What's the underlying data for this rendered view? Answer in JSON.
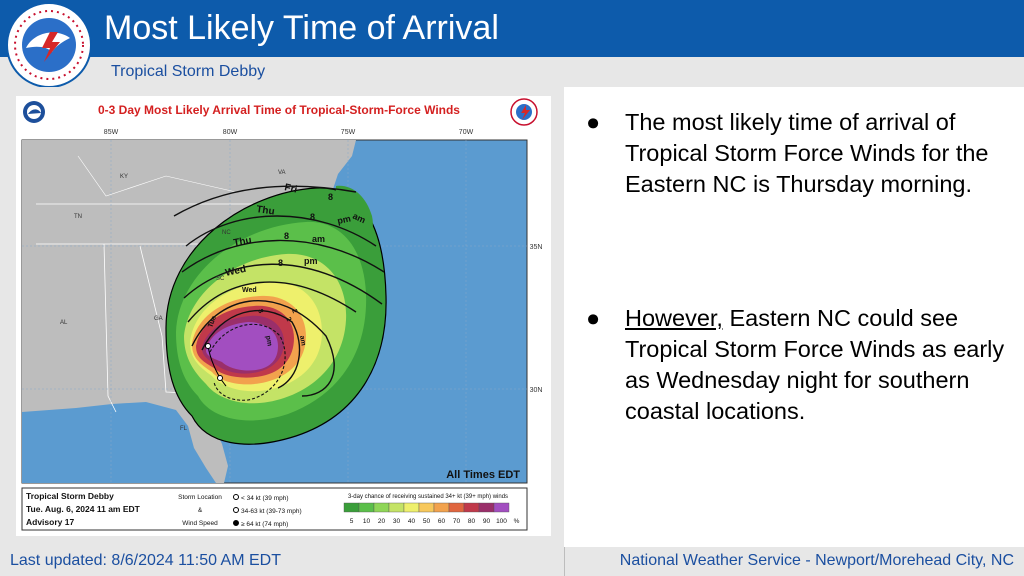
{
  "slide": {
    "title": "Most Likely Time of Arrival",
    "subtitle": "Tropical Storm Debby",
    "logo_text": "NATIONAL WEATHER SERVICE"
  },
  "map": {
    "title": "0-3 Day Most Likely Arrival Time of Tropical-Storm-Force Winds",
    "longitudes": [
      "85W",
      "80W",
      "75W",
      "70W"
    ],
    "latitudes": [
      "35N",
      "30N"
    ],
    "states": [
      "KY",
      "VA",
      "TN",
      "NC",
      "SC",
      "AL",
      "GA",
      "FL"
    ],
    "contour_labels": [
      "Fri",
      "8",
      "am",
      "Thu",
      "8",
      "pm",
      "Thu",
      "8",
      "am",
      "Wed",
      "8",
      "pm",
      "Wed",
      "2",
      "pm",
      "Tue",
      "8",
      "2",
      "am"
    ],
    "times_note": "All Times EDT",
    "legend": {
      "storm_name": "Tropical Storm Debby",
      "issued": "Tue. Aug. 6, 2024  11 am EDT",
      "advisory": "Advisory 17",
      "storm_location_label": "Storm Location",
      "amp": "&",
      "wind_speed_label": "Wind Speed",
      "wind_entries": [
        "< 34 kt (39 mph)",
        "34-63 kt (39-73 mph)",
        "≥ 64 kt (74 mph)"
      ],
      "chance_label": "3-day chance of receiving sustained 34+ kt (39+ mph) winds",
      "scale_values": [
        "5",
        "10",
        "20",
        "30",
        "40",
        "50",
        "60",
        "70",
        "80",
        "90",
        "100",
        "%"
      ],
      "scale_colors": [
        "#3a9e3a",
        "#5bbf4a",
        "#8fd657",
        "#c4e366",
        "#eef06c",
        "#f7c85c",
        "#f2a24d",
        "#e0663f",
        "#c0394a",
        "#9a2f6a",
        "#a24ec0"
      ]
    }
  },
  "bullets": [
    {
      "lead": "",
      "text": "The most likely time of arrival of Tropical Storm Force Winds for the Eastern NC is Thursday morning."
    },
    {
      "lead": "However,",
      "text": " Eastern NC could see Tropical Storm Force Winds as early as Wednesday night for southern coastal locations."
    }
  ],
  "footer": {
    "updated": "Last updated: 8/6/2024 11:50 AM EDT",
    "office": "National Weather Service - Newport/Morehead City, NC"
  }
}
